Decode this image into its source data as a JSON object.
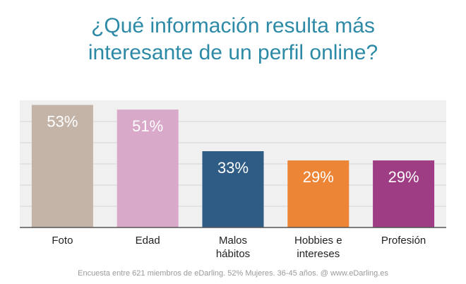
{
  "chart_data": {
    "type": "bar",
    "title_lines": [
      "¿Qué información resulta más",
      "interesante de un perfil online?"
    ],
    "categories": [
      [
        "Foto"
      ],
      [
        "Edad"
      ],
      [
        "Malos",
        "hábitos"
      ],
      [
        "Hobbies e",
        "intereses"
      ],
      [
        "Profesión"
      ]
    ],
    "values": [
      53,
      51,
      33,
      29,
      29
    ],
    "value_labels": [
      "53%",
      "51%",
      "33%",
      "29%",
      "29%"
    ],
    "colors": [
      "#c4b4a8",
      "#d8a9c9",
      "#2e5c84",
      "#ec8535",
      "#9e3c84"
    ],
    "label_colors": [
      "#ffffff",
      "#ffffff",
      "#ffffff",
      "#ffffff",
      "#ffffff"
    ],
    "ylim": [
      0,
      55
    ],
    "grid": true,
    "background": "#f0f0f0",
    "gridline_color": "#d6d6d6"
  },
  "footer": "Encuesta entre 621 miembros de eDarling. 52% Mujeres. 36-45 años. @ www.eDarling.es"
}
